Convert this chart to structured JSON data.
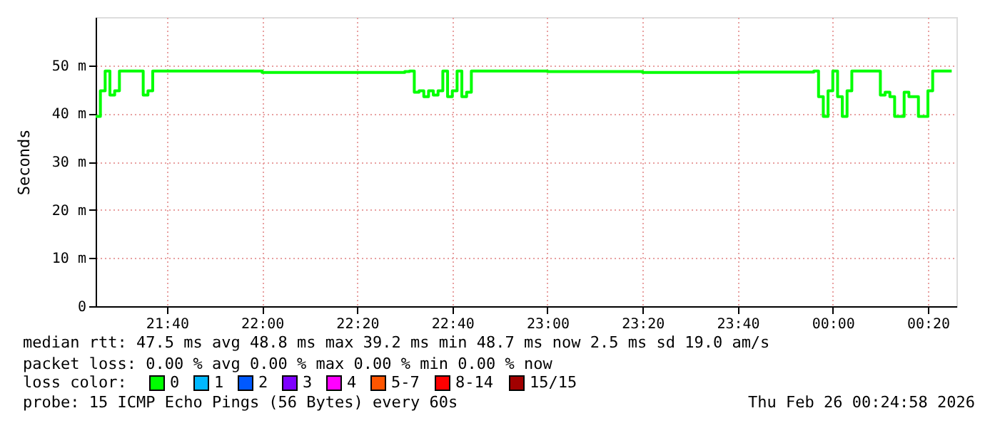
{
  "chart_data": {
    "type": "step",
    "ylabel": "Seconds",
    "x": [
      "2026-02-25T21:25",
      "2026-02-25T21:26",
      "2026-02-25T21:27",
      "2026-02-25T21:28",
      "2026-02-25T21:29",
      "2026-02-25T21:30",
      "2026-02-25T21:35",
      "2026-02-25T21:36",
      "2026-02-25T21:37",
      "2026-02-25T22:00",
      "2026-02-25T22:30",
      "2026-02-25T22:31",
      "2026-02-25T22:32",
      "2026-02-25T22:33",
      "2026-02-25T22:34",
      "2026-02-25T22:35",
      "2026-02-25T22:36",
      "2026-02-25T22:37",
      "2026-02-25T22:38",
      "2026-02-25T22:39",
      "2026-02-25T22:40",
      "2026-02-25T22:41",
      "2026-02-25T22:42",
      "2026-02-25T22:43",
      "2026-02-25T22:44",
      "2026-02-25T23:00",
      "2026-02-25T23:20",
      "2026-02-25T23:40",
      "2026-02-25T23:56",
      "2026-02-25T23:57",
      "2026-02-25T23:58",
      "2026-02-25T23:59",
      "2026-02-26T00:00",
      "2026-02-26T00:01",
      "2026-02-26T00:02",
      "2026-02-26T00:03",
      "2026-02-26T00:04",
      "2026-02-26T00:10",
      "2026-02-26T00:11",
      "2026-02-26T00:12",
      "2026-02-26T00:13",
      "2026-02-26T00:15",
      "2026-02-26T00:16",
      "2026-02-26T00:18",
      "2026-02-26T00:20",
      "2026-02-26T00:21",
      "2026-02-26T00:25"
    ],
    "series": [
      {
        "name": "0",
        "color": "#00ff00",
        "values": [
          39.4,
          44.7,
          48.8,
          43.8,
          44.7,
          48.8,
          43.8,
          44.7,
          48.8,
          48.5,
          48.7,
          48.8,
          44.4,
          44.7,
          43.5,
          44.7,
          43.8,
          44.7,
          48.8,
          43.5,
          44.7,
          48.8,
          43.5,
          44.4,
          48.8,
          48.7,
          48.5,
          48.6,
          48.8,
          43.5,
          39.4,
          44.7,
          48.8,
          43.5,
          39.4,
          44.7,
          48.8,
          43.8,
          44.4,
          43.5,
          39.4,
          44.4,
          43.5,
          39.4,
          44.7,
          48.8,
          48.8
        ]
      },
      {
        "name": "1",
        "color": "#00b8ff",
        "values": [
          null,
          null,
          null,
          null,
          null,
          null,
          null,
          null,
          null,
          null,
          null,
          null,
          null,
          null,
          null,
          null,
          null,
          null,
          null,
          null,
          null,
          null,
          null,
          null,
          null,
          null,
          null,
          null,
          null,
          null,
          null,
          null,
          null,
          null,
          null,
          null,
          null,
          null,
          null,
          null,
          null,
          null,
          null,
          null,
          null,
          null,
          null
        ]
      },
      {
        "name": "2",
        "color": "#0059ff",
        "values": [
          null,
          null,
          null,
          null,
          null,
          null,
          null,
          null,
          null,
          null,
          null,
          null,
          null,
          null,
          null,
          null,
          null,
          null,
          null,
          null,
          null,
          null,
          null,
          null,
          null,
          null,
          null,
          null,
          null,
          null,
          null,
          null,
          null,
          null,
          null,
          null,
          null,
          null,
          null,
          null,
          null,
          null,
          null,
          null,
          null,
          null,
          null
        ]
      },
      {
        "name": "3",
        "color": "#7e00ff",
        "values": [
          null,
          null,
          null,
          null,
          null,
          null,
          null,
          null,
          null,
          null,
          null,
          null,
          null,
          null,
          null,
          null,
          null,
          null,
          null,
          null,
          null,
          null,
          null,
          null,
          null,
          null,
          null,
          null,
          null,
          null,
          null,
          null,
          null,
          null,
          null,
          null,
          null,
          null,
          null,
          null,
          null,
          null,
          null,
          null,
          null,
          null,
          null
        ]
      },
      {
        "name": "4",
        "color": "#ff00ff",
        "values": [
          null,
          null,
          null,
          null,
          null,
          null,
          null,
          null,
          null,
          null,
          null,
          null,
          null,
          null,
          null,
          null,
          null,
          null,
          null,
          null,
          null,
          null,
          null,
          null,
          null,
          null,
          null,
          null,
          null,
          null,
          null,
          null,
          null,
          null,
          null,
          null,
          null,
          null,
          null,
          null,
          null,
          null,
          null,
          null,
          null,
          null,
          null
        ]
      },
      {
        "name": "5-7",
        "color": "#ff5500",
        "values": [
          null,
          null,
          null,
          null,
          null,
          null,
          null,
          null,
          null,
          null,
          null,
          null,
          null,
          null,
          null,
          null,
          null,
          null,
          null,
          null,
          null,
          null,
          null,
          null,
          null,
          null,
          null,
          null,
          null,
          null,
          null,
          null,
          null,
          null,
          null,
          null,
          null,
          null,
          null,
          null,
          null,
          null,
          null,
          null,
          null,
          null,
          null
        ]
      },
      {
        "name": "8-14",
        "color": "#ff0000",
        "values": [
          null,
          null,
          null,
          null,
          null,
          null,
          null,
          null,
          null,
          null,
          null,
          null,
          null,
          null,
          null,
          null,
          null,
          null,
          null,
          null,
          null,
          null,
          null,
          null,
          null,
          null,
          null,
          null,
          null,
          null,
          null,
          null,
          null,
          null,
          null,
          null,
          null,
          null,
          null,
          null,
          null,
          null,
          null,
          null,
          null,
          null,
          null
        ]
      },
      {
        "name": "15/15",
        "color": "#a10000",
        "values": [
          null,
          null,
          null,
          null,
          null,
          null,
          null,
          null,
          null,
          null,
          null,
          null,
          null,
          null,
          null,
          null,
          null,
          null,
          null,
          null,
          null,
          null,
          null,
          null,
          null,
          null,
          null,
          null,
          null,
          null,
          null,
          null,
          null,
          null,
          null,
          null,
          null,
          null,
          null,
          null,
          null,
          null,
          null,
          null,
          null,
          null,
          null
        ]
      }
    ],
    "legend_title": "loss color:",
    "legend": "bottom",
    "xlim": [
      "2026-02-25T21:25",
      "2026-02-26T00:26"
    ],
    "xticks": [
      {
        "value": "2026-02-25T21:40",
        "label": "21:40"
      },
      {
        "value": "2026-02-25T22:00",
        "label": "22:00"
      },
      {
        "value": "2026-02-25T22:20",
        "label": "22:20"
      },
      {
        "value": "2026-02-25T22:40",
        "label": "22:40"
      },
      {
        "value": "2026-02-25T23:00",
        "label": "23:00"
      },
      {
        "value": "2026-02-25T23:20",
        "label": "23:20"
      },
      {
        "value": "2026-02-25T23:40",
        "label": "23:40"
      },
      {
        "value": "2026-02-26T00:00",
        "label": "00:00"
      },
      {
        "value": "2026-02-26T00:20",
        "label": "00:20"
      }
    ],
    "ylim": [
      0,
      60
    ],
    "yticks": [
      0,
      {
        "value": 10,
        "label": "10 m"
      },
      {
        "value": 20,
        "label": "20 m"
      },
      {
        "value": 30,
        "label": "30 m"
      },
      {
        "value": 40,
        "label": "40 m"
      },
      {
        "value": 50,
        "label": "50 m"
      }
    ],
    "grid": true,
    "annotations": [
      "median rtt:  47.5 ms avg  48.8 ms max  39.2 ms min  48.7 ms now  2.5 ms sd  19.0   am/s",
      "packet loss: 0.00 % avg  0.00 % max  0.00 % min  0.00 % now",
      "probe:       15 ICMP Echo Pings (56 Bytes) every 60s",
      "Thu Feb 26 00:24:58 2026"
    ]
  }
}
